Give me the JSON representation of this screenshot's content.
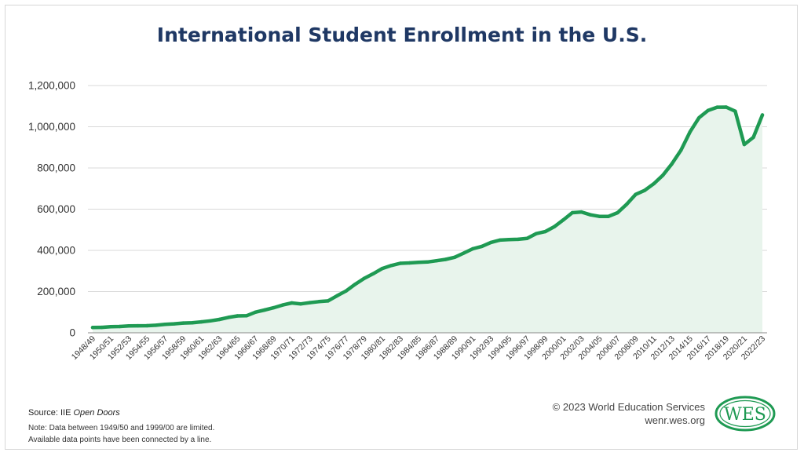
{
  "chart_data": {
    "type": "area",
    "title": "International Student Enrollment in the U.S.",
    "ylim": [
      0,
      1200000
    ],
    "yticks": [
      0,
      200000,
      400000,
      600000,
      800000,
      1000000,
      1200000
    ],
    "ytick_labels": [
      "0",
      "200,000",
      "400,000",
      "600,000",
      "800,000",
      "1,000,000",
      "1,200,000"
    ],
    "xtick_labels": [
      "1948/49",
      "1950/51",
      "1952/53",
      "1954/55",
      "1956/57",
      "1958/59",
      "1960/61",
      "1962/63",
      "1964/65",
      "1966/67",
      "1968/69",
      "1970/71",
      "1972/73",
      "1974/75",
      "1976/77",
      "1978/79",
      "1980/81",
      "1982/83",
      "1984/85",
      "1986/87",
      "1988/89",
      "1990/91",
      "1992/93",
      "1994/95",
      "1996/97",
      "1998/99",
      "2000/01",
      "2002/03",
      "2004/05",
      "2006/07",
      "2008/09",
      "2010/11",
      "2012/13",
      "2014/15",
      "2016/17",
      "2018/19",
      "2020/21",
      "2022/23"
    ],
    "grid": true,
    "legend": "none",
    "colors": {
      "line": "#1f9a53",
      "fill": "#e8f4ec",
      "grid": "#d9d9d9"
    },
    "x": [
      "1948/49",
      "1949/50",
      "1950/51",
      "1951/52",
      "1952/53",
      "1953/54",
      "1954/55",
      "1955/56",
      "1956/57",
      "1957/58",
      "1958/59",
      "1959/60",
      "1960/61",
      "1961/62",
      "1962/63",
      "1963/64",
      "1964/65",
      "1965/66",
      "1966/67",
      "1967/68",
      "1968/69",
      "1969/70",
      "1970/71",
      "1971/72",
      "1972/73",
      "1973/74",
      "1974/75",
      "1975/76",
      "1976/77",
      "1977/78",
      "1978/79",
      "1979/80",
      "1980/81",
      "1981/82",
      "1982/83",
      "1983/84",
      "1984/85",
      "1985/86",
      "1986/87",
      "1987/88",
      "1988/89",
      "1989/90",
      "1990/91",
      "1991/92",
      "1992/93",
      "1993/94",
      "1994/95",
      "1995/96",
      "1996/97",
      "1997/98",
      "1998/99",
      "1999/00",
      "2000/01",
      "2001/02",
      "2002/03",
      "2003/04",
      "2004/05",
      "2005/06",
      "2006/07",
      "2007/08",
      "2008/09",
      "2009/10",
      "2010/11",
      "2011/12",
      "2012/13",
      "2013/14",
      "2014/15",
      "2015/16",
      "2016/17",
      "2017/18",
      "2018/19",
      "2019/20",
      "2020/21",
      "2021/22",
      "2022/23"
    ],
    "values": [
      25464,
      26433,
      29813,
      30462,
      33675,
      33833,
      34232,
      36494,
      40666,
      43391,
      47245,
      48486,
      53107,
      58086,
      64705,
      74814,
      82045,
      82709,
      100262,
      110315,
      121362,
      134959,
      144708,
      140126,
      146097,
      151066,
      154580,
      179340,
      203068,
      235509,
      263938,
      286343,
      311882,
      326299,
      336985,
      338894,
      342113,
      343777,
      349609,
      356187,
      366354,
      386851,
      407529,
      419585,
      438618,
      449749,
      452635,
      453787,
      457984,
      481280,
      490933,
      514723,
      547867,
      582996,
      586323,
      572509,
      565039,
      564766,
      582984,
      623805,
      671616,
      690923,
      723277,
      764495,
      819644,
      886052,
      974926,
      1043839,
      1078822,
      1094792,
      1095299,
      1075496,
      914095,
      948519,
      1057188
    ]
  },
  "footer": {
    "source_prefix": "Source: IIE ",
    "source_italic": "Open Doors",
    "note_line1": "Note: Data between 1949/50 and 1999/00 are limited.",
    "note_line2": "Available data points have been connected by a line.",
    "copyright": "© 2023 World Education Services",
    "website": "wenr.wes.org"
  },
  "logo": {
    "text": "WES",
    "color": "#1f9a53"
  }
}
